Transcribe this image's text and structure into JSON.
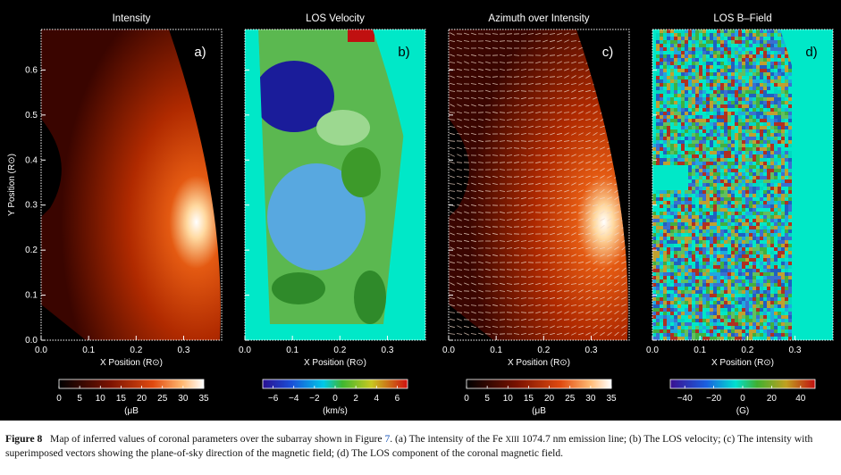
{
  "panels": [
    {
      "title": "Intensity",
      "letter": "a)",
      "type": "intensity",
      "xlabel": "X Position (R",
      "ylabel": "Y Position (R",
      "colorbar": {
        "ticks": [
          "0",
          "5",
          "10",
          "15",
          "20",
          "25",
          "30",
          "35"
        ],
        "unit": "(μB",
        "min": 0,
        "max": 35
      }
    },
    {
      "title": "LOS Velocity",
      "letter": "b)",
      "type": "velocity",
      "xlabel": "X Position (R",
      "colorbar": {
        "ticks": [
          "−6",
          "−4",
          "−2",
          "0",
          "2",
          "4",
          "6"
        ],
        "unit": "(km/s)",
        "min": -7,
        "max": 7
      }
    },
    {
      "title": "Azimuth over Intensity",
      "letter": "c)",
      "type": "azimuth",
      "xlabel": "X Position (R",
      "colorbar": {
        "ticks": [
          "0",
          "5",
          "10",
          "15",
          "20",
          "25",
          "30",
          "35"
        ],
        "unit": "(μB",
        "min": 0,
        "max": 35
      }
    },
    {
      "title": "LOS B–Field",
      "letter": "d)",
      "type": "bfield",
      "xlabel": "X Position (R",
      "colorbar": {
        "ticks": [
          "−40",
          "−20",
          "0",
          "20",
          "40"
        ],
        "unit": "(G)",
        "min": -50,
        "max": 50
      }
    }
  ],
  "axes": {
    "x_ticks": [
      "0.0",
      "0.1",
      "0.2",
      "0.3"
    ],
    "x_values": [
      0.0,
      0.1,
      0.2,
      0.3
    ],
    "x_range": [
      0,
      0.38
    ],
    "y_ticks": [
      "0.0",
      "0.1",
      "0.2",
      "0.3",
      "0.4",
      "0.5",
      "0.6"
    ],
    "y_values": [
      0.0,
      0.1,
      0.2,
      0.3,
      0.4,
      0.5,
      0.6
    ],
    "y_range": [
      0,
      0.69
    ],
    "sun_symbol": "⊙",
    "unit_suffix": ")"
  },
  "caption": {
    "label": "Figure 8",
    "line1": "Map of inferred values of coronal parameters over the subarray shown in Figure",
    "fig_ref": "7",
    "line1b": ". (a) The intensity of the Fe",
    "ion": "XIII",
    "line1c": "1074.7 nm emission line; (b) The LOS velocity;",
    "line2": "(c) The intensity with superimposed vectors showing the plane-of-sky direction of the magnetic field; (d) The LOS component of the coronal magnetic field."
  },
  "colors": {
    "intensity_low": "#3a0500",
    "intensity_mid": "#b02a00",
    "intensity_high": "#ffffff",
    "velocity_blue": "#1a1c9a",
    "velocity_cyan": "#00e8c8",
    "velocity_green": "#3d9a2a",
    "velocity_red": "#c01010",
    "bfield_bg": "#00e8c8",
    "caption_ref": "#1a56b8"
  }
}
